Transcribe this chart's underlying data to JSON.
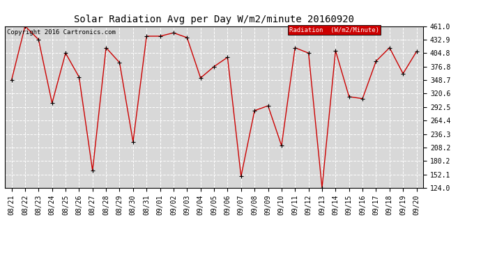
{
  "title": "Solar Radiation Avg per Day W/m2/minute 20160920",
  "copyright": "Copyright 2016 Cartronics.com",
  "legend_label": "Radiation  (W/m2/Minute)",
  "x_labels": [
    "08/21",
    "08/22",
    "08/23",
    "08/24",
    "08/25",
    "08/26",
    "08/27",
    "08/28",
    "08/29",
    "08/30",
    "08/31",
    "09/01",
    "09/02",
    "09/03",
    "09/04",
    "09/05",
    "09/06",
    "09/07",
    "09/08",
    "09/09",
    "09/10",
    "09/11",
    "09/12",
    "09/13",
    "09/14",
    "09/15",
    "09/16",
    "09/17",
    "09/18",
    "09/19",
    "09/20"
  ],
  "y_values": [
    348.7,
    461.0,
    432.9,
    300.6,
    404.8,
    355.0,
    160.0,
    416.0,
    385.0,
    220.0,
    440.0,
    440.0,
    447.0,
    437.0,
    353.0,
    376.8,
    396.0,
    148.0,
    285.0,
    295.0,
    212.0,
    416.0,
    404.8,
    124.0,
    410.0,
    314.0,
    310.0,
    388.0,
    416.0,
    362.0,
    408.0
  ],
  "y_ticks": [
    124.0,
    152.1,
    180.2,
    208.2,
    236.3,
    264.4,
    292.5,
    320.6,
    348.7,
    376.8,
    404.8,
    432.9,
    461.0
  ],
  "y_min": 124.0,
  "y_max": 461.0,
  "line_color": "#cc0000",
  "marker_color": "#000000",
  "bg_color": "#ffffff",
  "plot_bg_color": "#d8d8d8",
  "grid_color": "#ffffff",
  "legend_bg": "#cc0000",
  "legend_text_color": "#ffffff",
  "title_fontsize": 10,
  "tick_fontsize": 7,
  "copyright_fontsize": 6.5
}
